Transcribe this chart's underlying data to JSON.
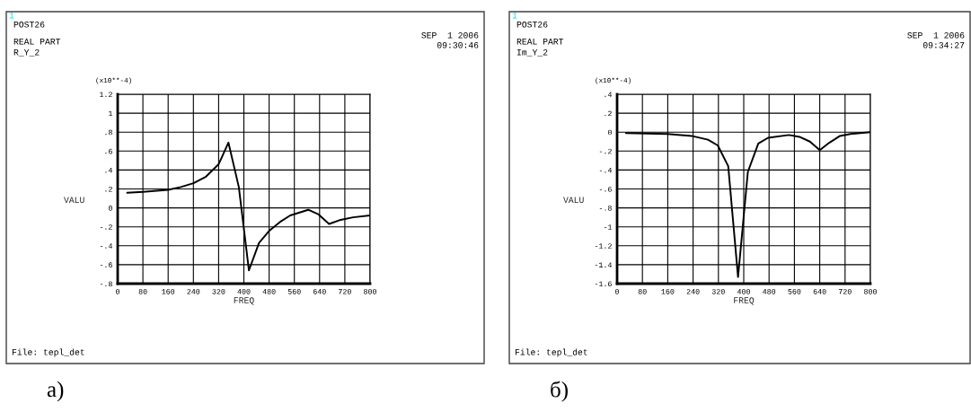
{
  "chart_data": [
    {
      "type": "line",
      "xlabel": "FREQ",
      "ylabel": "VALU",
      "annotations": [
        "1",
        "POST26",
        "REAL PART",
        "R_Y_2",
        "SEP  1 2006",
        "09:30:46",
        "(x10**-4)",
        "File: tepl_det",
        "а)"
      ],
      "series": [
        {
          "color": "#000000",
          "x": [
            30,
            80,
            160,
            200,
            240,
            280,
            320,
            351,
            384,
            416,
            448,
            481,
            514,
            547,
            604,
            637,
            670,
            703,
            746,
            800
          ],
          "values": [
            0.16,
            0.17,
            0.19,
            0.22,
            0.26,
            0.33,
            0.46,
            0.69,
            0.22,
            -0.66,
            -0.37,
            -0.24,
            -0.15,
            -0.08,
            -0.02,
            -0.07,
            -0.17,
            -0.13,
            -0.1,
            -0.08
          ]
        }
      ],
      "xlim": [
        0,
        800
      ],
      "xticks": [
        0,
        80,
        160,
        240,
        320,
        400,
        480,
        560,
        640,
        720,
        800
      ],
      "ylim": [
        -0.8,
        1.2
      ],
      "yticks": [
        {
          "value": -0.8,
          "label": "-.8"
        },
        {
          "value": -0.6,
          "label": "-.6"
        },
        {
          "value": -0.4,
          "label": "-.4"
        },
        {
          "value": -0.2,
          "label": "-.2"
        },
        0,
        {
          "value": 0.2,
          "label": ".2"
        },
        {
          "value": 0.4,
          "label": ".4"
        },
        {
          "value": 0.6,
          "label": ".6"
        },
        {
          "value": 0.8,
          "label": ".8"
        },
        1,
        1.2
      ],
      "grid": true
    },
    {
      "type": "line",
      "xlabel": "FREQ",
      "ylabel": "VALU",
      "annotations": [
        "1",
        "POST26",
        "REAL PART",
        "Im_Y_2",
        "SEP  1 2006",
        "09:34:27",
        "(x10**-4)",
        "File: tepl_det",
        "б)"
      ],
      "series": [
        {
          "color": "#000000",
          "x": [
            28,
            159,
            235,
            287,
            318,
            351,
            382,
            413,
            446,
            477,
            543,
            576,
            609,
            640,
            671,
            704,
            737,
            800
          ],
          "values": [
            -0.01,
            -0.02,
            -0.04,
            -0.08,
            -0.14,
            -0.36,
            -1.53,
            -0.42,
            -0.12,
            -0.06,
            -0.03,
            -0.05,
            -0.1,
            -0.19,
            -0.11,
            -0.04,
            -0.02,
            0
          ]
        }
      ],
      "xlim": [
        0,
        800
      ],
      "xticks": [
        0,
        80,
        160,
        240,
        320,
        400,
        480,
        560,
        640,
        720,
        800
      ],
      "ylim": [
        -1.6,
        0.4
      ],
      "yticks": [
        {
          "value": -1.6,
          "label": "-1.6"
        },
        {
          "value": -1.4,
          "label": "-1.4"
        },
        {
          "value": -1.2,
          "label": "-1.2"
        },
        -1,
        {
          "value": -0.8,
          "label": "-.8"
        },
        {
          "value": -0.6,
          "label": "-.6"
        },
        {
          "value": -0.4,
          "label": "-.4"
        },
        {
          "value": -0.2,
          "label": "-.2"
        },
        0,
        {
          "value": 0.2,
          "label": ".2"
        },
        {
          "value": 0.4,
          "label": ".4"
        }
      ],
      "grid": true
    }
  ]
}
